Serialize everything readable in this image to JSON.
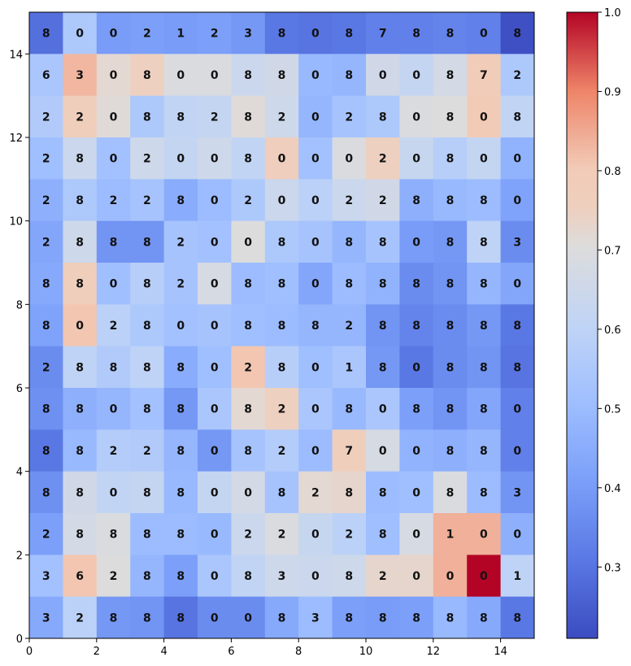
{
  "chart_data": {
    "type": "heatmap",
    "title": "",
    "xlabel": "",
    "ylabel": "",
    "xlim": [
      0,
      15
    ],
    "ylim": [
      0,
      15
    ],
    "x_ticks": [
      0,
      2,
      4,
      6,
      8,
      10,
      12,
      14
    ],
    "y_ticks": [
      0,
      2,
      4,
      6,
      8,
      10,
      12,
      14
    ],
    "colormap": "coolwarm",
    "colorbar": {
      "min": 0.21,
      "max": 1.0,
      "ticks": [
        0.3,
        0.4,
        0.5,
        0.6,
        0.7,
        0.8,
        0.9,
        1.0
      ]
    },
    "grid": false,
    "rows_top_to_bottom": [
      [
        0.29,
        0.55,
        0.4,
        0.41,
        0.4,
        0.41,
        0.39,
        0.31,
        0.3,
        0.31,
        0.33,
        0.33,
        0.34,
        0.33,
        0.22
      ],
      [
        0.54,
        0.83,
        0.72,
        0.75,
        0.69,
        0.69,
        0.64,
        0.66,
        0.49,
        0.48,
        0.66,
        0.62,
        0.67,
        0.79,
        0.55
      ],
      [
        0.56,
        0.77,
        0.71,
        0.55,
        0.61,
        0.62,
        0.71,
        0.65,
        0.48,
        0.53,
        0.55,
        0.69,
        0.7,
        0.8,
        0.61
      ],
      [
        0.51,
        0.64,
        0.52,
        0.65,
        0.62,
        0.65,
        0.61,
        0.76,
        0.52,
        0.69,
        0.75,
        0.63,
        0.58,
        0.62,
        0.47
      ],
      [
        0.46,
        0.55,
        0.5,
        0.53,
        0.45,
        0.5,
        0.55,
        0.64,
        0.59,
        0.64,
        0.66,
        0.46,
        0.49,
        0.5,
        0.42
      ],
      [
        0.43,
        0.65,
        0.38,
        0.38,
        0.53,
        0.52,
        0.7,
        0.55,
        0.53,
        0.48,
        0.53,
        0.4,
        0.39,
        0.6,
        0.36
      ],
      [
        0.44,
        0.77,
        0.51,
        0.58,
        0.53,
        0.68,
        0.5,
        0.51,
        0.43,
        0.5,
        0.47,
        0.36,
        0.38,
        0.48,
        0.43
      ],
      [
        0.42,
        0.81,
        0.59,
        0.55,
        0.52,
        0.53,
        0.51,
        0.5,
        0.48,
        0.48,
        0.38,
        0.34,
        0.36,
        0.39,
        0.31
      ],
      [
        0.36,
        0.6,
        0.56,
        0.6,
        0.45,
        0.51,
        0.81,
        0.58,
        0.51,
        0.54,
        0.39,
        0.31,
        0.36,
        0.38,
        0.3
      ],
      [
        0.37,
        0.46,
        0.48,
        0.52,
        0.39,
        0.54,
        0.72,
        0.75,
        0.54,
        0.49,
        0.54,
        0.41,
        0.38,
        0.43,
        0.33
      ],
      [
        0.31,
        0.49,
        0.57,
        0.56,
        0.48,
        0.39,
        0.53,
        0.57,
        0.5,
        0.77,
        0.68,
        0.47,
        0.46,
        0.48,
        0.33
      ],
      [
        0.37,
        0.66,
        0.61,
        0.62,
        0.49,
        0.62,
        0.67,
        0.53,
        0.72,
        0.73,
        0.5,
        0.51,
        0.69,
        0.5,
        0.38
      ],
      [
        0.41,
        0.67,
        0.69,
        0.5,
        0.5,
        0.49,
        0.64,
        0.69,
        0.63,
        0.59,
        0.51,
        0.68,
        0.84,
        0.84,
        0.46
      ],
      [
        0.52,
        0.81,
        0.7,
        0.48,
        0.41,
        0.54,
        0.61,
        0.65,
        0.64,
        0.65,
        0.73,
        0.73,
        0.84,
        1.0,
        0.6
      ],
      [
        0.44,
        0.59,
        0.39,
        0.38,
        0.3,
        0.36,
        0.36,
        0.44,
        0.5,
        0.41,
        0.4,
        0.41,
        0.49,
        0.44,
        0.31
      ]
    ],
    "cell_labels_top_to_bottom": [
      [
        "8",
        "0",
        "0",
        "2",
        "1",
        "2",
        "3",
        "8",
        "0",
        "8",
        "7",
        "8",
        "8",
        "0",
        "8"
      ],
      [
        "6",
        "3",
        "0",
        "8",
        "0",
        "0",
        "8",
        "8",
        "0",
        "8",
        "0",
        "0",
        "8",
        "7",
        "2"
      ],
      [
        "2",
        "2",
        "0",
        "8",
        "8",
        "2",
        "8",
        "2",
        "0",
        "2",
        "8",
        "0",
        "8",
        "0",
        "8"
      ],
      [
        "2",
        "8",
        "0",
        "2",
        "0",
        "0",
        "8",
        "0",
        "0",
        "0",
        "2",
        "0",
        "8",
        "0",
        "0"
      ],
      [
        "2",
        "8",
        "2",
        "2",
        "8",
        "0",
        "2",
        "0",
        "0",
        "2",
        "2",
        "8",
        "8",
        "8",
        "0"
      ],
      [
        "2",
        "8",
        "8",
        "8",
        "2",
        "0",
        "0",
        "8",
        "0",
        "8",
        "8",
        "0",
        "8",
        "8",
        "3"
      ],
      [
        "8",
        "8",
        "0",
        "8",
        "2",
        "0",
        "8",
        "8",
        "0",
        "8",
        "8",
        "8",
        "8",
        "8",
        "0"
      ],
      [
        "8",
        "0",
        "2",
        "8",
        "0",
        "0",
        "8",
        "8",
        "8",
        "2",
        "8",
        "8",
        "8",
        "8",
        "8"
      ],
      [
        "2",
        "8",
        "8",
        "8",
        "8",
        "0",
        "2",
        "8",
        "0",
        "1",
        "8",
        "0",
        "8",
        "8",
        "8"
      ],
      [
        "8",
        "8",
        "0",
        "8",
        "8",
        "0",
        "8",
        "2",
        "0",
        "8",
        "0",
        "8",
        "8",
        "8",
        "0"
      ],
      [
        "8",
        "8",
        "2",
        "2",
        "8",
        "0",
        "8",
        "2",
        "0",
        "7",
        "0",
        "0",
        "8",
        "8",
        "0"
      ],
      [
        "8",
        "8",
        "0",
        "8",
        "8",
        "0",
        "0",
        "8",
        "2",
        "8",
        "8",
        "0",
        "8",
        "8",
        "3"
      ],
      [
        "2",
        "8",
        "8",
        "8",
        "8",
        "0",
        "2",
        "2",
        "0",
        "2",
        "8",
        "0",
        "1",
        "0",
        "0"
      ],
      [
        "3",
        "6",
        "2",
        "8",
        "8",
        "0",
        "8",
        "3",
        "0",
        "8",
        "2",
        "0",
        "0",
        "0",
        "1"
      ],
      [
        "3",
        "2",
        "8",
        "8",
        "8",
        "0",
        "0",
        "8",
        "3",
        "8",
        "8",
        "8",
        "8",
        "8",
        "8"
      ]
    ]
  }
}
